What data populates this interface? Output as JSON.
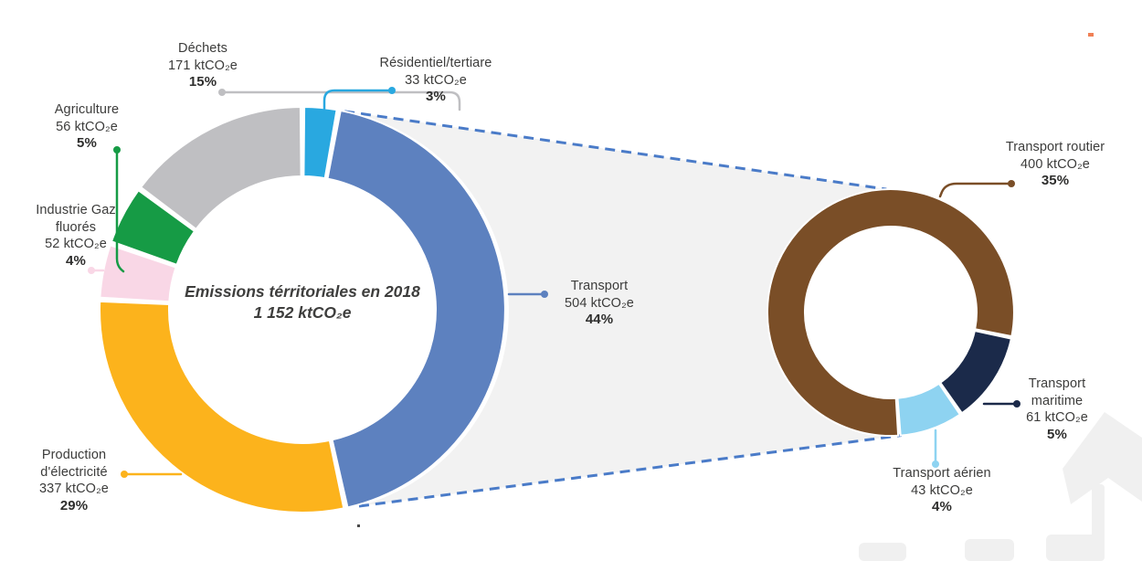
{
  "chart_data": {
    "type": "donut",
    "layout_hint": "main donut exploded into transport sub-donut via dashed connector",
    "highlight_fill": "#f2f2f2",
    "connector_color": "#4a7bc8",
    "main": {
      "center_title": "Emissions térritoriales en 2018",
      "center_value": "1 152 ktCO₂e",
      "total_ktco2e": 1152,
      "segments": [
        {
          "name": "Résidentiel/tertiare",
          "value_ktco2e": 33,
          "value_label": "33 ktCO₂e",
          "pct_label": "3%",
          "color": "#29a8e0"
        },
        {
          "name": "Transport",
          "value_ktco2e": 504,
          "value_label": "504 ktCO₂e",
          "pct_label": "44%",
          "color": "#5d81bf"
        },
        {
          "name": "Production d'électricité",
          "value_ktco2e": 337,
          "value_label": "337 ktCO₂e",
          "pct_label": "29%",
          "color": "#fcb31c"
        },
        {
          "name": "Industrie Gaz fluorés",
          "value_ktco2e": 52,
          "value_label": "52 ktCO₂e",
          "pct_label": "4%",
          "color": "#f9d7e6"
        },
        {
          "name": "Agriculture",
          "value_ktco2e": 56,
          "value_label": "56 ktCO₂e",
          "pct_label": "5%",
          "color": "#169b45"
        },
        {
          "name": "Déchets",
          "value_ktco2e": 171,
          "value_label": "171 ktCO₂e",
          "pct_label": "15%",
          "color": "#bfbfc2"
        }
      ]
    },
    "transport_breakdown": {
      "total_ktco2e": 504,
      "segments": [
        {
          "name": "Transport routier",
          "value_ktco2e": 400,
          "value_label": "400 ktCO₂e",
          "pct_label": "35%",
          "color": "#7a4e27"
        },
        {
          "name": "Transport maritime",
          "value_ktco2e": 61,
          "value_label": "61 ktCO₂e",
          "pct_label": "5%",
          "color": "#1b2a4a"
        },
        {
          "name": "Transport aérien",
          "value_ktco2e": 43,
          "value_label": "43 ktCO₂e",
          "pct_label": "4%",
          "color": "#8ed3f1"
        }
      ]
    }
  }
}
